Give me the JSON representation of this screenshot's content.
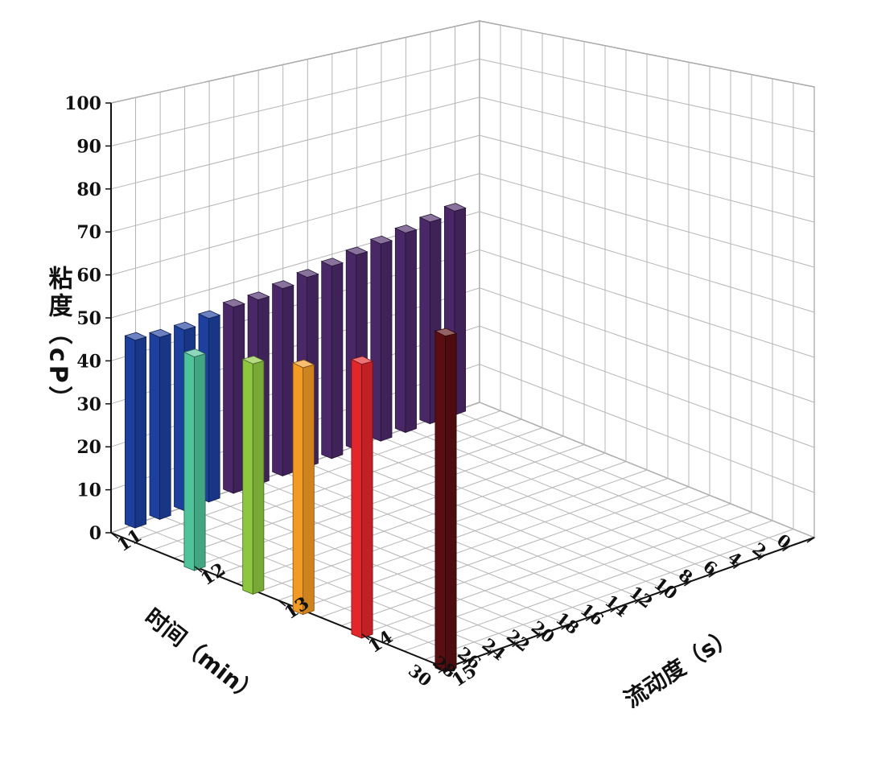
{
  "chart_data": {
    "type": "bar3d",
    "zlabel": "粘度（cP）",
    "xlabel": "时间（min）",
    "ylabel": "流动度（s）",
    "z_ticks": [
      "0",
      "10",
      "20",
      "30",
      "40",
      "50",
      "60",
      "70",
      "80",
      "90",
      "100"
    ],
    "x_ticks": [
      "0",
      "2",
      "4",
      "6",
      "8",
      "10",
      "12",
      "14",
      "16",
      "18",
      "20",
      "22",
      "24",
      "26",
      "28",
      "30"
    ],
    "y_ticks": [
      "11",
      "12",
      "13",
      "14",
      "15"
    ],
    "zlim": [
      0,
      100
    ],
    "xlim": [
      0,
      30
    ],
    "ylim": [
      11,
      15
    ],
    "grid": true,
    "series": [
      {
        "color": "#4a2868",
        "points": [
          {
            "x": 2,
            "y": 11,
            "z": 53
          },
          {
            "x": 4,
            "y": 11,
            "z": 52
          },
          {
            "x": 6,
            "y": 11,
            "z": 51
          },
          {
            "x": 8,
            "y": 11,
            "z": 50
          },
          {
            "x": 10,
            "y": 11,
            "z": 49
          },
          {
            "x": 12,
            "y": 11,
            "z": 48
          },
          {
            "x": 14,
            "y": 11,
            "z": 47
          },
          {
            "x": 16,
            "y": 11,
            "z": 46
          },
          {
            "x": 18,
            "y": 11,
            "z": 45
          },
          {
            "x": 20,
            "y": 11,
            "z": 45
          }
        ]
      },
      {
        "color": "#1d3f9e",
        "points": [
          {
            "x": 22,
            "y": 11,
            "z": 44
          },
          {
            "x": 24,
            "y": 11,
            "z": 43
          },
          {
            "x": 26,
            "y": 11,
            "z": 43
          },
          {
            "x": 28,
            "y": 11,
            "z": 44
          }
        ]
      },
      {
        "color": "#4fc39a",
        "points": [
          {
            "x": 30,
            "y": 12,
            "z": 51
          }
        ]
      },
      {
        "color": "#8dc63f",
        "points": [
          {
            "x": 30,
            "y": 12.7,
            "z": 56
          }
        ]
      },
      {
        "color": "#f29a24",
        "points": [
          {
            "x": 30,
            "y": 13.3,
            "z": 61
          }
        ]
      },
      {
        "color": "#e3262b",
        "points": [
          {
            "x": 30,
            "y": 14,
            "z": 69
          }
        ]
      },
      {
        "color": "#5a0e12",
        "points": [
          {
            "x": 30,
            "y": 15,
            "z": 87
          }
        ]
      }
    ]
  }
}
